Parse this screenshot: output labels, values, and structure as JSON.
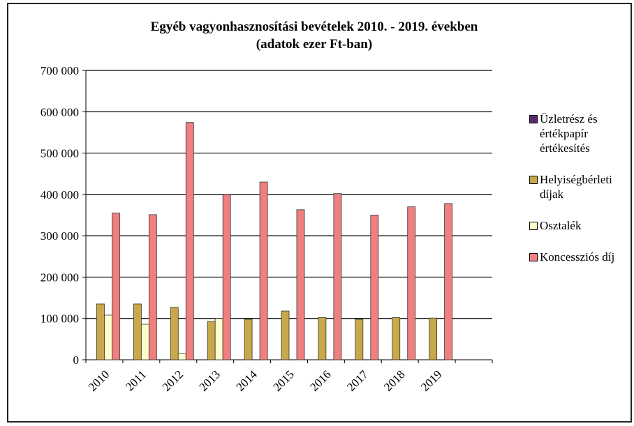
{
  "chart_data": {
    "type": "bar",
    "title": "Egyéb vagyonhasznosítási bevételek 2010. - 2019. években",
    "subtitle": "(adatok ezer Ft-ban)",
    "categories": [
      "2010",
      "2011",
      "2012",
      "2013",
      "2014",
      "2015",
      "2016",
      "2017",
      "2018",
      "2019",
      null
    ],
    "series": [
      {
        "name": "Üzletrész és értékpapír értékesítés",
        "color": "#5a2a6e",
        "values": [
          0,
          0,
          0,
          0,
          0,
          0,
          0,
          0,
          0,
          0,
          null
        ]
      },
      {
        "name": "Helyiségbérleti díjak",
        "color": "#c9a84a",
        "values": [
          135000,
          135000,
          127000,
          93000,
          98000,
          118000,
          102000,
          98000,
          102000,
          101000,
          null
        ]
      },
      {
        "name": "Osztalék",
        "color": "#ffffcc",
        "values": [
          108000,
          86000,
          15000,
          100000,
          0,
          0,
          0,
          0,
          0,
          0,
          null
        ]
      },
      {
        "name": "Koncessziós díj",
        "color": "#f08080",
        "values": [
          355000,
          351000,
          574000,
          400000,
          430000,
          363000,
          402000,
          350000,
          370000,
          378000,
          null
        ]
      }
    ],
    "ylim": [
      0,
      700000
    ],
    "yticks": [
      0,
      {
        "value": 100000,
        "label": "100 000"
      },
      {
        "value": 200000,
        "label": "200 000"
      },
      {
        "value": 300000,
        "label": "300 000"
      },
      {
        "value": 400000,
        "label": "400 000"
      },
      {
        "value": 500000,
        "label": "500 000"
      },
      {
        "value": 600000,
        "label": "600 000"
      },
      {
        "value": 700000,
        "label": "700 000"
      }
    ],
    "grid": true,
    "legend": "right"
  }
}
